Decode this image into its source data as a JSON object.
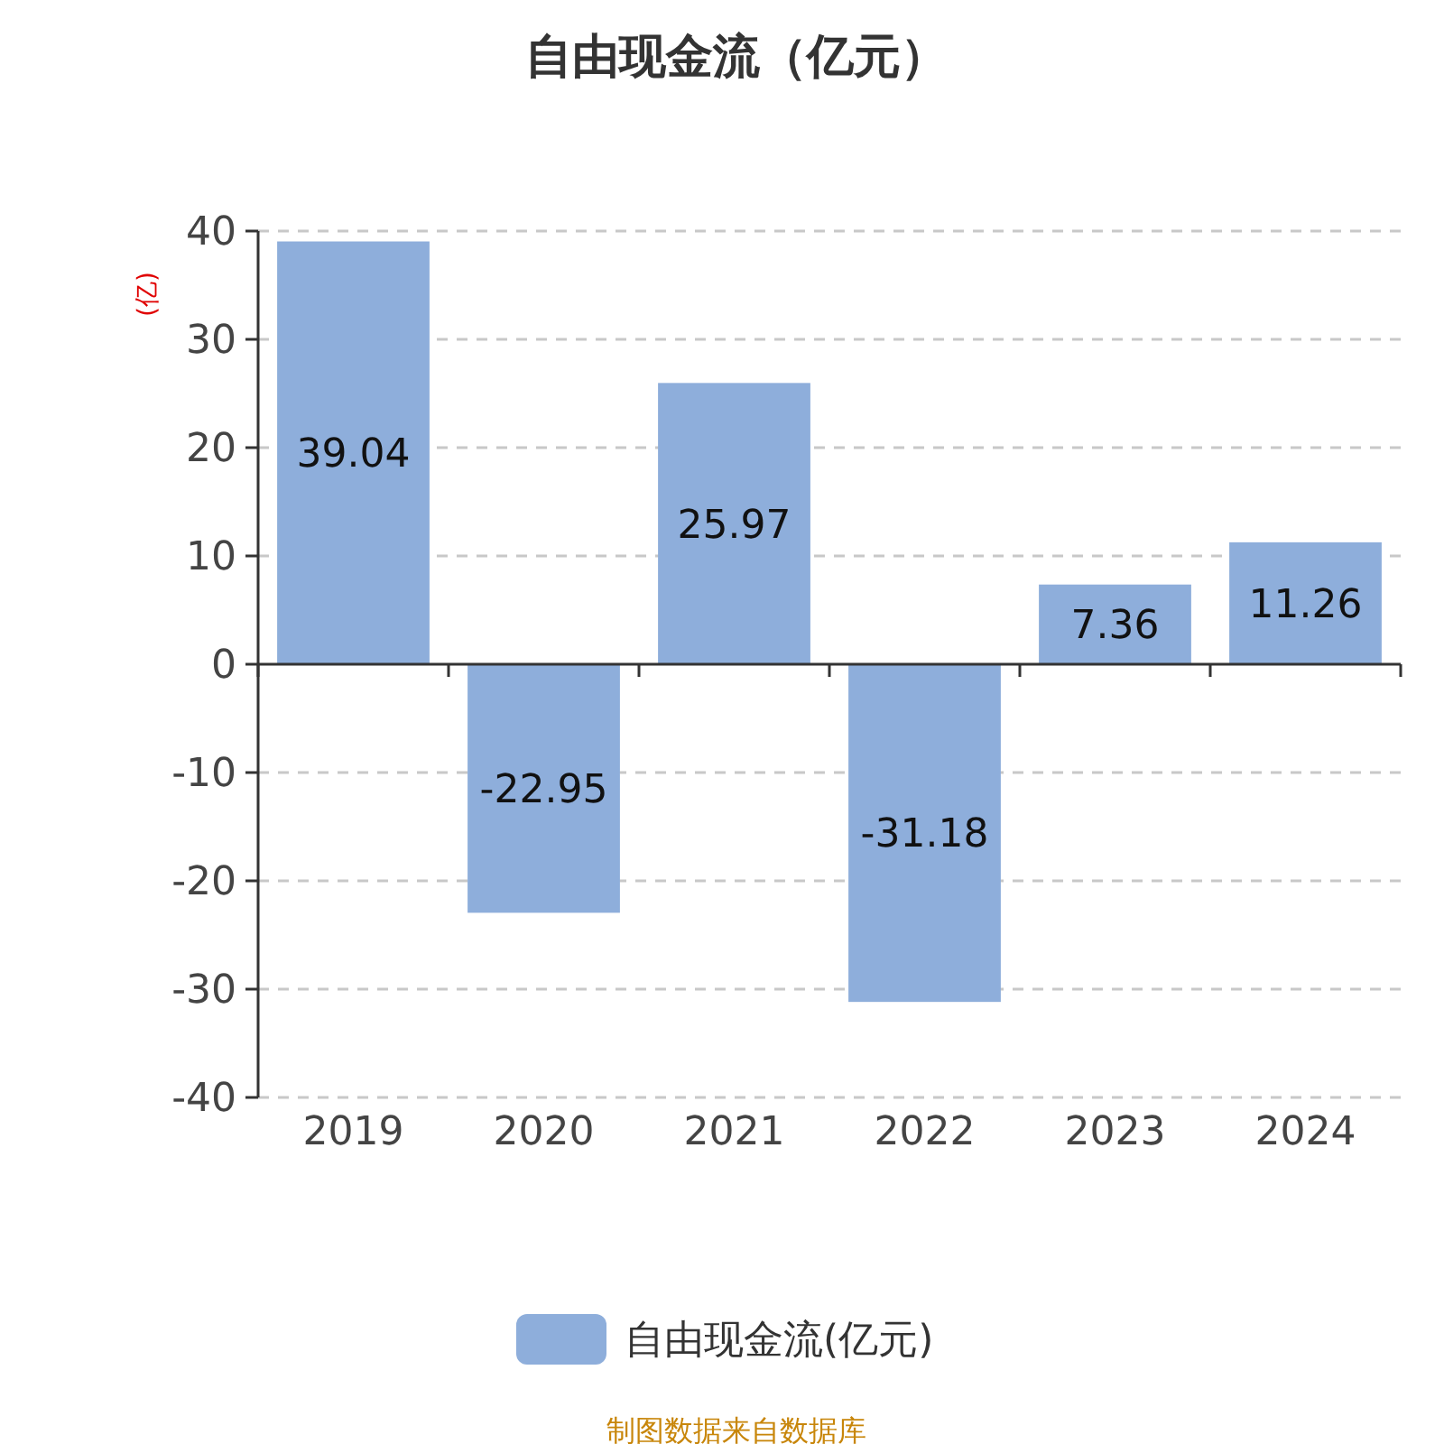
{
  "chart_data": {
    "type": "bar",
    "title": "自由现金流（亿元）",
    "ylabel": "(亿)",
    "categories": [
      "2019",
      "2020",
      "2021",
      "2022",
      "2023",
      "2024"
    ],
    "series": [
      {
        "name": "自由现金流(亿元)",
        "color": "#8eaedb",
        "values": [
          39.04,
          -22.95,
          25.97,
          -31.18,
          7.36,
          11.26
        ]
      }
    ],
    "ylim": [
      -40,
      40
    ],
    "yticks": [
      -40,
      -30,
      -20,
      -10,
      0,
      10,
      20,
      30,
      40
    ],
    "grid": "y",
    "legend": "bottom",
    "data_labels": true,
    "annotations": [
      "制图数据来自数据库"
    ]
  }
}
